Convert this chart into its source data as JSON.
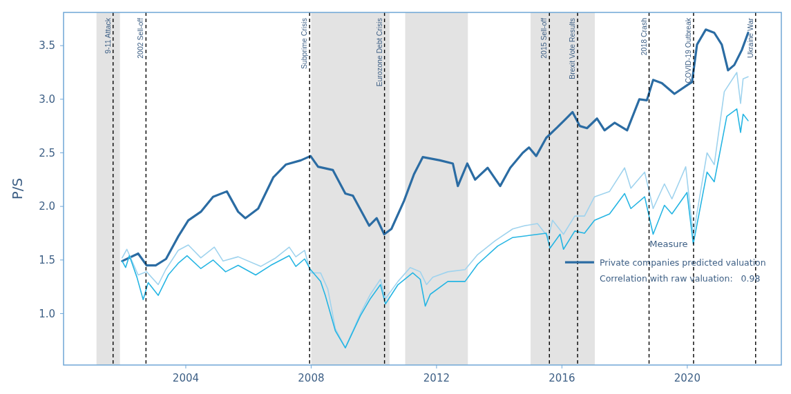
{
  "chart_data": {
    "type": "line",
    "ylabel": "P/S",
    "legend_title": "Measure",
    "legend": "bottom right",
    "grid": false,
    "xlim": [
      2000.1,
      2023.0
    ],
    "xticks": [
      2004,
      2008,
      2012,
      2016,
      2020
    ],
    "ylim": [
      0.52,
      3.81
    ],
    "yticks": [
      {
        "value": 1,
        "label": "1.0"
      },
      {
        "value": 1.5,
        "label": "1.5"
      },
      {
        "value": 2,
        "label": "2.0"
      },
      {
        "value": 2.5,
        "label": "2.5"
      },
      {
        "value": 3,
        "label": "3.0"
      },
      {
        "value": 3.5,
        "label": "3.5"
      }
    ],
    "series": [
      {
        "name": "Private companies predicted valuation",
        "color": "#2b6ca3",
        "x": [
          2001.97,
          2002.48,
          2002.75,
          2003.04,
          2003.37,
          2003.76,
          2004.08,
          2004.48,
          2004.87,
          2005.31,
          2005.67,
          2005.9,
          2006.31,
          2006.79,
          2007.19,
          2007.67,
          2007.98,
          2008.22,
          2008.69,
          2009.09,
          2009.33,
          2009.85,
          2010.09,
          2010.33,
          2010.56,
          2010.96,
          2011.28,
          2011.56,
          2012.11,
          2012.52,
          2012.68,
          2012.98,
          2013.23,
          2013.63,
          2014.03,
          2014.35,
          2014.75,
          2014.95,
          2015.18,
          2015.5,
          2015.86,
          2016.1,
          2016.34,
          2016.57,
          2016.8,
          2017.12,
          2017.36,
          2017.68,
          2018.08,
          2018.47,
          2018.71,
          2018.91,
          2019.19,
          2019.59,
          2019.99,
          2020.15,
          2020.31,
          2020.59,
          2020.86,
          2021.1,
          2021.3,
          2021.5,
          2021.74,
          2021.94
        ],
        "values": [
          1.49,
          1.56,
          1.45,
          1.45,
          1.51,
          1.72,
          1.87,
          1.95,
          2.09,
          2.14,
          1.95,
          1.89,
          1.98,
          2.27,
          2.39,
          2.43,
          2.47,
          2.37,
          2.34,
          2.12,
          2.1,
          1.82,
          1.89,
          1.74,
          1.79,
          2.05,
          2.3,
          2.46,
          2.43,
          2.4,
          2.19,
          2.4,
          2.25,
          2.36,
          2.19,
          2.36,
          2.5,
          2.55,
          2.47,
          2.64,
          2.74,
          2.81,
          2.88,
          2.75,
          2.73,
          2.82,
          2.71,
          2.78,
          2.71,
          3.0,
          2.99,
          3.18,
          3.15,
          3.05,
          3.13,
          3.16,
          3.51,
          3.65,
          3.62,
          3.51,
          3.27,
          3.32,
          3.46,
          3.62
        ]
      },
      {
        "color": "#9fd3ee",
        "x": [
          2001.97,
          2002.12,
          2002.48,
          2002.75,
          2003.12,
          2003.36,
          2003.76,
          2004.08,
          2004.48,
          2004.91,
          2005.19,
          2005.67,
          2006.39,
          2006.87,
          2007.3,
          2007.51,
          2007.79,
          2007.98,
          2008.3,
          2008.53,
          2008.77,
          2009.09,
          2009.57,
          2009.89,
          2010.21,
          2010.37,
          2010.77,
          2011.16,
          2011.48,
          2011.68,
          2011.88,
          2012.36,
          2012.91,
          2013.31,
          2013.87,
          2014.43,
          2014.82,
          2015.22,
          2015.57,
          2015.7,
          2016.05,
          2016.41,
          2016.72,
          2017.04,
          2017.52,
          2018.0,
          2018.2,
          2018.64,
          2018.91,
          2019.27,
          2019.51,
          2019.95,
          2020.19,
          2020.63,
          2020.86,
          2021.18,
          2021.58,
          2021.7,
          2021.78,
          2021.94
        ],
        "values": [
          1.52,
          1.6,
          1.36,
          1.39,
          1.27,
          1.41,
          1.59,
          1.64,
          1.52,
          1.62,
          1.49,
          1.53,
          1.44,
          1.52,
          1.62,
          1.53,
          1.59,
          1.38,
          1.38,
          1.23,
          0.86,
          0.68,
          1.0,
          1.18,
          1.32,
          1.14,
          1.3,
          1.43,
          1.39,
          1.27,
          1.34,
          1.39,
          1.41,
          1.55,
          1.68,
          1.79,
          1.82,
          1.84,
          1.71,
          1.87,
          1.74,
          1.91,
          1.91,
          2.09,
          2.14,
          2.36,
          2.17,
          2.32,
          1.98,
          2.21,
          2.07,
          2.37,
          1.73,
          2.5,
          2.39,
          3.07,
          3.25,
          2.96,
          3.19,
          3.21
        ]
      },
      {
        "color": "#25b5e3",
        "x": [
          2001.97,
          2002.08,
          2002.2,
          2002.44,
          2002.64,
          2002.8,
          2003.12,
          2003.44,
          2003.76,
          2004.04,
          2004.48,
          2004.87,
          2005.27,
          2005.67,
          2006.23,
          2006.71,
          2007.3,
          2007.51,
          2007.79,
          2007.98,
          2008.3,
          2008.45,
          2008.77,
          2009.09,
          2009.57,
          2009.89,
          2010.21,
          2010.37,
          2010.77,
          2011.24,
          2011.48,
          2011.64,
          2011.8,
          2012.36,
          2012.91,
          2013.31,
          2013.95,
          2014.43,
          2014.98,
          2015.5,
          2015.62,
          2015.94,
          2016.05,
          2016.41,
          2016.72,
          2017.04,
          2017.52,
          2018.0,
          2018.2,
          2018.64,
          2018.91,
          2019.27,
          2019.51,
          2019.99,
          2020.19,
          2020.63,
          2020.86,
          2021.26,
          2021.58,
          2021.7,
          2021.78,
          2021.94
        ],
        "values": [
          1.49,
          1.43,
          1.54,
          1.34,
          1.13,
          1.29,
          1.17,
          1.36,
          1.47,
          1.54,
          1.42,
          1.5,
          1.39,
          1.45,
          1.36,
          1.45,
          1.54,
          1.44,
          1.51,
          1.41,
          1.3,
          1.17,
          0.84,
          0.68,
          0.98,
          1.14,
          1.27,
          1.09,
          1.27,
          1.38,
          1.32,
          1.07,
          1.18,
          1.3,
          1.3,
          1.46,
          1.63,
          1.71,
          1.73,
          1.75,
          1.61,
          1.74,
          1.6,
          1.77,
          1.75,
          1.87,
          1.93,
          2.12,
          1.98,
          2.09,
          1.74,
          2.01,
          1.93,
          2.13,
          1.65,
          2.32,
          2.23,
          2.84,
          2.91,
          2.69,
          2.86,
          2.8
        ]
      }
    ],
    "bands": [
      {
        "axis": "x",
        "from": 2001.15,
        "to": 2001.9,
        "color": "#e3e3e3"
      },
      {
        "axis": "x",
        "from": 2008.0,
        "to": 2010.5,
        "color": "#e3e3e3"
      },
      {
        "axis": "x",
        "from": 2011.0,
        "to": 2013.0,
        "color": "#e3e3e3"
      },
      {
        "axis": "x",
        "from": 2015.0,
        "to": 2017.05,
        "color": "#e3e3e3"
      }
    ],
    "ref_lines": [
      {
        "axis": "x",
        "value": 2001.68,
        "label": "9-11 Attack",
        "color": "#000000",
        "line_style": "dashed"
      },
      {
        "axis": "x",
        "value": 2002.73,
        "label": "2002 Sell-off",
        "color": "#000000",
        "line_style": "dashed"
      },
      {
        "axis": "x",
        "value": 2007.95,
        "label": "Subprime Crisis",
        "color": "#000000",
        "line_style": "dashed"
      },
      {
        "axis": "x",
        "value": 2010.34,
        "label": "Eurozone Debt Crisis",
        "color": "#000000",
        "line_style": "dashed"
      },
      {
        "axis": "x",
        "value": 2015.6,
        "label": "2015 Sell-off",
        "color": "#000000",
        "line_style": "dashed"
      },
      {
        "axis": "x",
        "value": 2016.5,
        "label": "Brexit Vote Results",
        "color": "#000000",
        "line_style": "dashed"
      },
      {
        "axis": "x",
        "value": 2018.78,
        "label": "2018 Crash",
        "color": "#000000",
        "line_style": "dashed"
      },
      {
        "axis": "x",
        "value": 2020.2,
        "label": "COVID-19 Outbreak",
        "color": "#000000",
        "line_style": "dashed"
      },
      {
        "axis": "x",
        "value": 2022.18,
        "label": "Ukraine War",
        "color": "#000000",
        "line_style": "dashed"
      }
    ],
    "annotations": [
      "Correlation with raw valuation:   0.98"
    ]
  }
}
